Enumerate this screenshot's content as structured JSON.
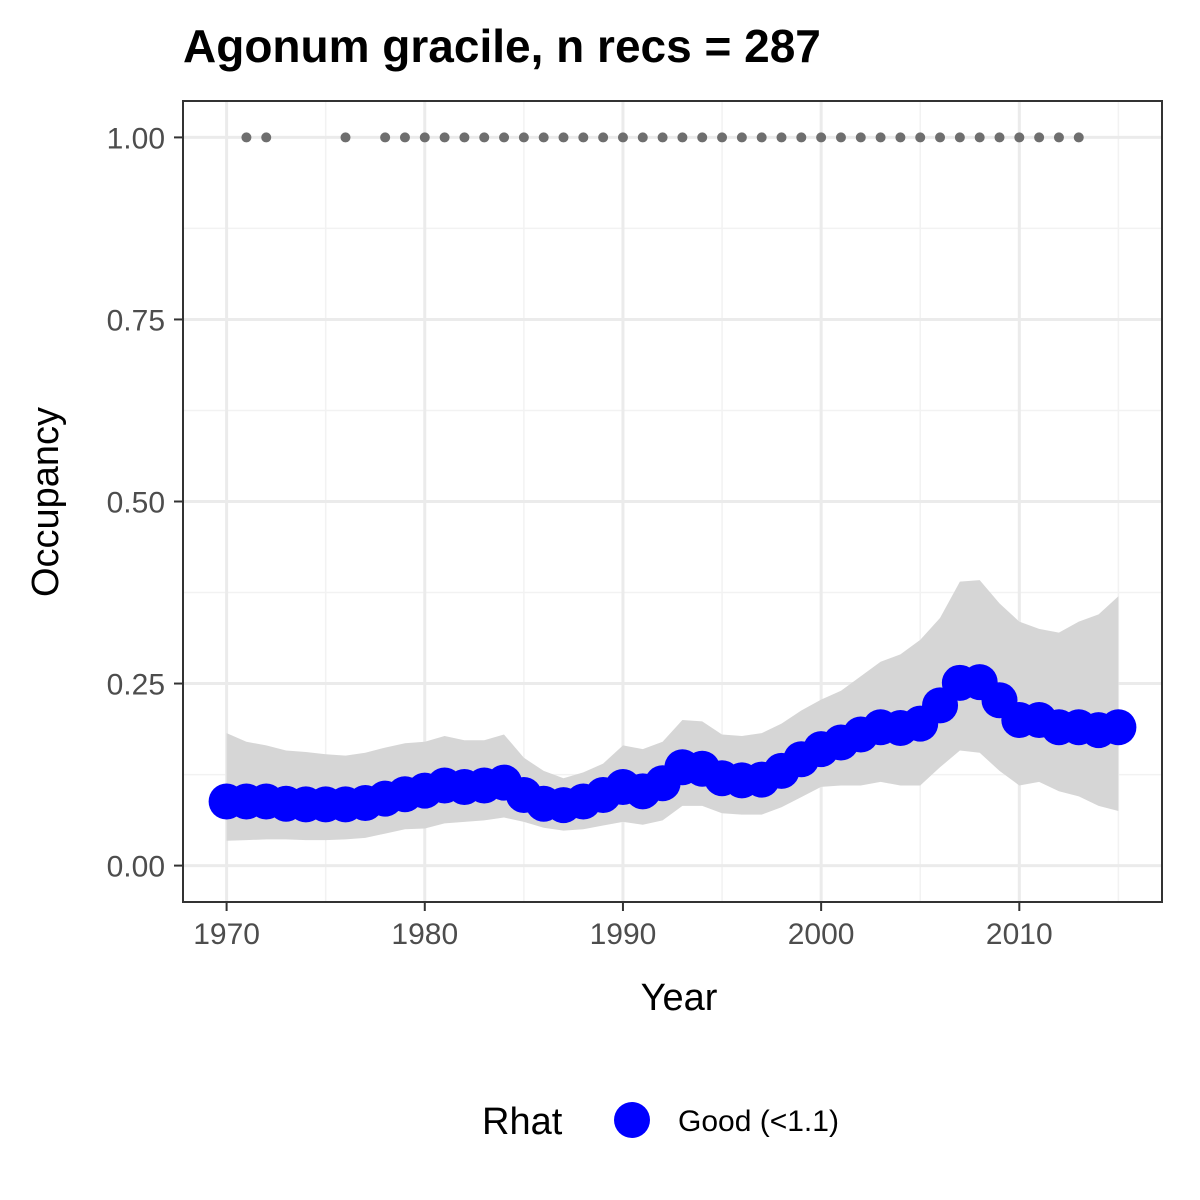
{
  "chart_data": {
    "type": "line",
    "title": "Agonum gracile, n recs = 287",
    "xlabel": "Year",
    "ylabel": "Occupancy",
    "xlim": [
      1967.8,
      2017.2
    ],
    "ylim": [
      -0.05,
      1.05
    ],
    "x_ticks": [
      1970,
      1980,
      1990,
      2000,
      2010
    ],
    "x_tick_labels": [
      "1970",
      "1980",
      "1990",
      "2000",
      "2010"
    ],
    "y_ticks": [
      0,
      0.25,
      0.5,
      0.75,
      1.0
    ],
    "y_tick_labels": [
      "0.00",
      "0.25",
      "0.50",
      "0.75",
      "1.00"
    ],
    "grid": true,
    "series": [
      {
        "name": "Good (<1.1)",
        "kind": "line-with-points",
        "color": "#0000ff",
        "x": [
          1970,
          1971,
          1972,
          1973,
          1974,
          1975,
          1976,
          1977,
          1978,
          1979,
          1980,
          1981,
          1982,
          1983,
          1984,
          1985,
          1986,
          1987,
          1988,
          1989,
          1990,
          1991,
          1992,
          1993,
          1994,
          1995,
          1996,
          1997,
          1998,
          1999,
          2000,
          2001,
          2002,
          2003,
          2004,
          2005,
          2006,
          2007,
          2008,
          2009,
          2010,
          2011,
          2012,
          2013,
          2014,
          2015
        ],
        "y": [
          0.088,
          0.088,
          0.088,
          0.085,
          0.084,
          0.084,
          0.084,
          0.086,
          0.092,
          0.098,
          0.103,
          0.11,
          0.108,
          0.11,
          0.114,
          0.097,
          0.085,
          0.083,
          0.088,
          0.097,
          0.108,
          0.102,
          0.113,
          0.135,
          0.133,
          0.12,
          0.117,
          0.118,
          0.13,
          0.146,
          0.16,
          0.169,
          0.18,
          0.19,
          0.189,
          0.195,
          0.22,
          0.251,
          0.252,
          0.227,
          0.2,
          0.2,
          0.19,
          0.19,
          0.186,
          0.19
        ]
      },
      {
        "name": "",
        "kind": "credible-interval",
        "color": "#d6d6d6",
        "x": [
          1970,
          1971,
          1972,
          1973,
          1974,
          1975,
          1976,
          1977,
          1978,
          1979,
          1980,
          1981,
          1982,
          1983,
          1984,
          1985,
          1986,
          1987,
          1988,
          1989,
          1990,
          1991,
          1992,
          1993,
          1994,
          1995,
          1996,
          1997,
          1998,
          1999,
          2000,
          2001,
          2002,
          2003,
          2004,
          2005,
          2006,
          2007,
          2008,
          2009,
          2010,
          2011,
          2012,
          2013,
          2014,
          2015
        ],
        "lower": [
          0.034,
          0.035,
          0.036,
          0.036,
          0.035,
          0.035,
          0.036,
          0.038,
          0.044,
          0.05,
          0.051,
          0.058,
          0.06,
          0.062,
          0.066,
          0.06,
          0.052,
          0.048,
          0.05,
          0.055,
          0.06,
          0.056,
          0.062,
          0.082,
          0.082,
          0.072,
          0.07,
          0.07,
          0.08,
          0.094,
          0.108,
          0.11,
          0.11,
          0.115,
          0.11,
          0.11,
          0.135,
          0.158,
          0.155,
          0.13,
          0.11,
          0.115,
          0.102,
          0.095,
          0.082,
          0.075
        ],
        "upper": [
          0.182,
          0.17,
          0.165,
          0.158,
          0.156,
          0.153,
          0.151,
          0.155,
          0.162,
          0.168,
          0.17,
          0.178,
          0.172,
          0.172,
          0.18,
          0.148,
          0.13,
          0.12,
          0.128,
          0.14,
          0.165,
          0.16,
          0.17,
          0.2,
          0.198,
          0.18,
          0.178,
          0.182,
          0.195,
          0.213,
          0.228,
          0.24,
          0.26,
          0.28,
          0.29,
          0.31,
          0.34,
          0.39,
          0.392,
          0.36,
          0.335,
          0.325,
          0.32,
          0.335,
          0.345,
          0.37
        ]
      },
      {
        "name": "",
        "kind": "records",
        "color": "#6e6e6e",
        "x": [
          1971,
          1972,
          1976,
          1978,
          1979,
          1980,
          1981,
          1982,
          1983,
          1984,
          1985,
          1986,
          1987,
          1988,
          1989,
          1990,
          1991,
          1992,
          1993,
          1994,
          1995,
          1996,
          1997,
          1998,
          1999,
          2000,
          2001,
          2002,
          2003,
          2004,
          2005,
          2006,
          2007,
          2008,
          2009,
          2010,
          2011,
          2012,
          2013
        ],
        "y": [
          1,
          1,
          1,
          1,
          1,
          1,
          1,
          1,
          1,
          1,
          1,
          1,
          1,
          1,
          1,
          1,
          1,
          1,
          1,
          1,
          1,
          1,
          1,
          1,
          1,
          1,
          1,
          1,
          1,
          1,
          1,
          1,
          1,
          1,
          1,
          1,
          1,
          1,
          1
        ]
      }
    ],
    "legend": {
      "title": "Rhat",
      "position": "bottom",
      "entries": [
        {
          "label": "Good (<1.1)",
          "color": "#0000ff"
        }
      ]
    }
  }
}
